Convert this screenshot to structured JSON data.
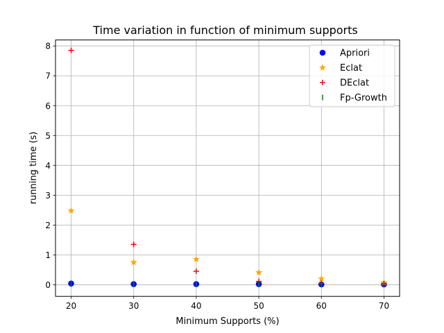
{
  "chart_data": {
    "type": "scatter",
    "title": "Time variation in function of minimum supports",
    "xlabel": "Minimum Supports (%)",
    "ylabel": "running time (s)",
    "xlim": [
      17.5,
      72.5
    ],
    "ylim": [
      -0.39,
      8.2
    ],
    "xticks": [
      20,
      30,
      40,
      50,
      60,
      70
    ],
    "yticks": [
      0,
      1,
      2,
      3,
      4,
      5,
      6,
      7,
      8
    ],
    "grid": true,
    "legend_position": "top-right",
    "x": [
      20,
      30,
      40,
      50,
      60,
      70
    ],
    "series": [
      {
        "name": "Apriori",
        "marker": "circle",
        "color": "#0000ff",
        "values": [
          0.04,
          0.02,
          0.02,
          0.02,
          0.01,
          0.01
        ]
      },
      {
        "name": "Eclat",
        "marker": "star",
        "color": "#ffa500",
        "values": [
          2.48,
          0.75,
          0.85,
          0.41,
          0.2,
          0.07
        ]
      },
      {
        "name": "DEclat",
        "marker": "plus",
        "color": "#ff0000",
        "values": [
          7.85,
          1.35,
          0.45,
          0.11,
          0.05,
          0.03
        ]
      },
      {
        "name": "Fp-Growth",
        "marker": "vline",
        "color": "#008000",
        "values": [
          0.02,
          0.01,
          0.01,
          0.01,
          0.01,
          0.01
        ]
      }
    ]
  }
}
